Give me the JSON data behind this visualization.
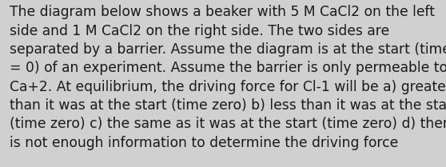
{
  "text": "The diagram below shows a beaker with 5 M CaCl2 on the left\nside and 1 M CaCl2 on the right side. The two sides are\nseparated by a barrier. Assume the diagram is at the start (time\n= 0) of an experiment. Assume the barrier is only permeable to\nCa+2. At equilibrium, the driving force for Cl-1 will be a) greater\nthan it was at the start (time zero) b) less than it was at the start\n(time zero) c) the same as it was at the start (time zero) d) there\nis not enough information to determine the driving force",
  "background_color": "#d0d0d0",
  "text_color": "#1a1a1a",
  "font_size": 12.3,
  "fig_width": 5.58,
  "fig_height": 2.09,
  "dpi": 100
}
